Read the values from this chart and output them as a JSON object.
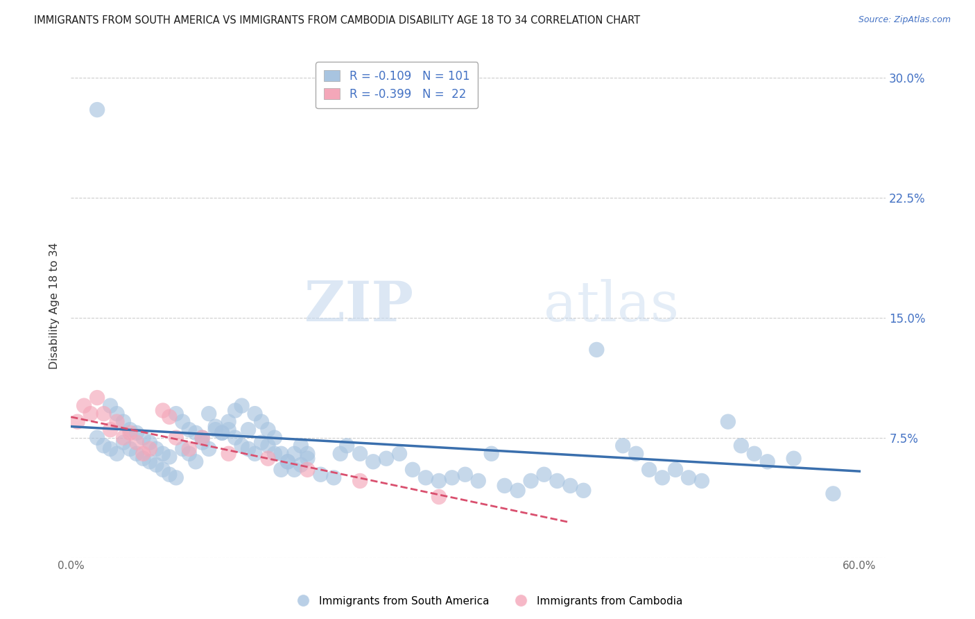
{
  "title": "IMMIGRANTS FROM SOUTH AMERICA VS IMMIGRANTS FROM CAMBODIA DISABILITY AGE 18 TO 34 CORRELATION CHART",
  "source": "Source: ZipAtlas.com",
  "ylabel": "Disability Age 18 to 34",
  "xlim": [
    0.0,
    0.62
  ],
  "ylim": [
    0.0,
    0.315
  ],
  "xticks": [
    0.0,
    0.1,
    0.2,
    0.3,
    0.4,
    0.5,
    0.6
  ],
  "xticklabels": [
    "0.0%",
    "",
    "",
    "",
    "",
    "",
    "60.0%"
  ],
  "yticks": [
    0.0,
    0.075,
    0.15,
    0.225,
    0.3
  ],
  "yticklabels": [
    "",
    "7.5%",
    "15.0%",
    "22.5%",
    "30.0%"
  ],
  "blue_color": "#a8c4e0",
  "blue_line_color": "#3a6fad",
  "pink_color": "#f4a7b9",
  "pink_line_color": "#d94f6e",
  "legend_R_blue": "R = -0.109",
  "legend_N_blue": "N = 101",
  "legend_R_pink": "R = -0.399",
  "legend_N_pink": "N =  22",
  "legend_label_blue": "Immigrants from South America",
  "legend_label_pink": "Immigrants from Cambodia",
  "watermark_zip": "ZIP",
  "watermark_atlas": "atlas",
  "blue_scatter_x": [
    0.02,
    0.03,
    0.035,
    0.04,
    0.045,
    0.05,
    0.055,
    0.06,
    0.065,
    0.07,
    0.075,
    0.08,
    0.085,
    0.09,
    0.095,
    0.1,
    0.105,
    0.11,
    0.115,
    0.12,
    0.125,
    0.13,
    0.135,
    0.14,
    0.145,
    0.15,
    0.155,
    0.16,
    0.165,
    0.17,
    0.175,
    0.18,
    0.19,
    0.2,
    0.205,
    0.21,
    0.22,
    0.23,
    0.24,
    0.25,
    0.26,
    0.27,
    0.28,
    0.29,
    0.3,
    0.31,
    0.32,
    0.33,
    0.34,
    0.35,
    0.36,
    0.37,
    0.38,
    0.39,
    0.4,
    0.42,
    0.43,
    0.44,
    0.45,
    0.46,
    0.47,
    0.48,
    0.5,
    0.51,
    0.52,
    0.53,
    0.55,
    0.58,
    0.02,
    0.025,
    0.03,
    0.035,
    0.04,
    0.045,
    0.05,
    0.055,
    0.06,
    0.065,
    0.07,
    0.075,
    0.08,
    0.085,
    0.09,
    0.095,
    0.1,
    0.105,
    0.11,
    0.115,
    0.12,
    0.125,
    0.13,
    0.135,
    0.14,
    0.145,
    0.15,
    0.155,
    0.16,
    0.165,
    0.17,
    0.175,
    0.18
  ],
  "blue_scatter_y": [
    0.28,
    0.095,
    0.09,
    0.085,
    0.08,
    0.078,
    0.075,
    0.072,
    0.068,
    0.065,
    0.063,
    0.09,
    0.085,
    0.08,
    0.078,
    0.075,
    0.09,
    0.08,
    0.078,
    0.085,
    0.092,
    0.095,
    0.08,
    0.09,
    0.085,
    0.07,
    0.065,
    0.055,
    0.06,
    0.065,
    0.07,
    0.065,
    0.052,
    0.05,
    0.065,
    0.07,
    0.065,
    0.06,
    0.062,
    0.065,
    0.055,
    0.05,
    0.048,
    0.05,
    0.052,
    0.048,
    0.065,
    0.045,
    0.042,
    0.048,
    0.052,
    0.048,
    0.045,
    0.042,
    0.13,
    0.07,
    0.065,
    0.055,
    0.05,
    0.055,
    0.05,
    0.048,
    0.085,
    0.07,
    0.065,
    0.06,
    0.062,
    0.04,
    0.075,
    0.07,
    0.068,
    0.065,
    0.072,
    0.068,
    0.065,
    0.062,
    0.06,
    0.058,
    0.055,
    0.052,
    0.05,
    0.068,
    0.065,
    0.06,
    0.072,
    0.068,
    0.082,
    0.078,
    0.08,
    0.075,
    0.07,
    0.068,
    0.065,
    0.072,
    0.08,
    0.075,
    0.065,
    0.06,
    0.055,
    0.058,
    0.062
  ],
  "pink_scatter_x": [
    0.005,
    0.01,
    0.015,
    0.02,
    0.025,
    0.03,
    0.035,
    0.04,
    0.045,
    0.05,
    0.055,
    0.06,
    0.07,
    0.075,
    0.08,
    0.09,
    0.1,
    0.12,
    0.15,
    0.18,
    0.22,
    0.28
  ],
  "pink_scatter_y": [
    0.085,
    0.095,
    0.09,
    0.1,
    0.09,
    0.08,
    0.085,
    0.075,
    0.078,
    0.072,
    0.065,
    0.068,
    0.092,
    0.088,
    0.075,
    0.068,
    0.075,
    0.065,
    0.062,
    0.055,
    0.048,
    0.038
  ],
  "blue_trend_x": [
    0.0,
    0.6
  ],
  "blue_trend_y": [
    0.082,
    0.054
  ],
  "pink_trend_x": [
    0.0,
    0.38
  ],
  "pink_trend_y": [
    0.088,
    0.022
  ],
  "grid_color": "#cccccc",
  "bg_color": "#ffffff"
}
